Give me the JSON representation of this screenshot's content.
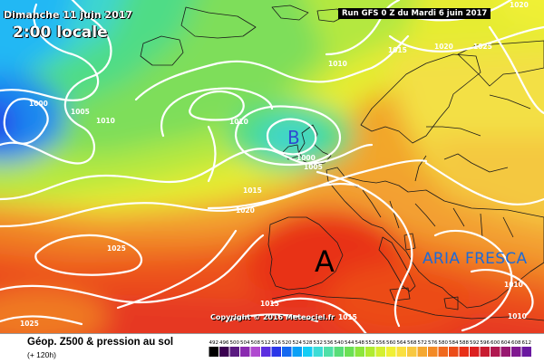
{
  "header": {
    "date": "Dimanche 11 juin 2017",
    "hour": "2:00 locale",
    "run": "Run GFS 0 Z du Mardi 6 juin 2017"
  },
  "copyright": "Copyright © 2016 Meteociel.fr",
  "annotation": "ARIA FRESCA",
  "footer": {
    "title": "Géop. Z500 & pression au sol",
    "subtitle": "(+ 120h)"
  },
  "pressure_centers": [
    {
      "letter": "B"
    },
    {
      "letter": "A"
    }
  ],
  "isobar_labels": [
    "1020",
    "1025",
    "1020",
    "1015",
    "1010",
    "1000",
    "1005",
    "1010",
    "1010",
    "1000",
    "1005",
    "1015",
    "1020",
    "1025",
    "1015",
    "1015",
    "1010",
    "1025",
    "1010"
  ],
  "legend": {
    "values": [
      "492",
      "496",
      "500",
      "504",
      "508",
      "512",
      "516",
      "520",
      "524",
      "528",
      "532",
      "536",
      "540",
      "544",
      "548",
      "552",
      "556",
      "560",
      "564",
      "568",
      "572",
      "576",
      "580",
      "584",
      "588",
      "592",
      "596",
      "600",
      "604",
      "608",
      "612"
    ],
    "colors": [
      "#000000",
      "#3a0050",
      "#5a1a80",
      "#8a2ab0",
      "#b04ad0",
      "#5c2ee0",
      "#2a36e8",
      "#1468f0",
      "#0aa0f6",
      "#14cdf5",
      "#3cdcd6",
      "#4fe0a8",
      "#58dd78",
      "#6be054",
      "#8ce63c",
      "#b0ec30",
      "#d4f030",
      "#f0f035",
      "#fae040",
      "#f8c840",
      "#f5a830",
      "#f38a25",
      "#f0681c",
      "#ec4c18",
      "#e83018",
      "#dc2020",
      "#c81c30",
      "#b01850",
      "#981870",
      "#801890",
      "#6a18a0"
    ]
  },
  "colors": {
    "high_label": "#000000",
    "low_label": "#2f4ad0",
    "annotation": "#1e6bd6",
    "isobar": "#ffffff"
  }
}
